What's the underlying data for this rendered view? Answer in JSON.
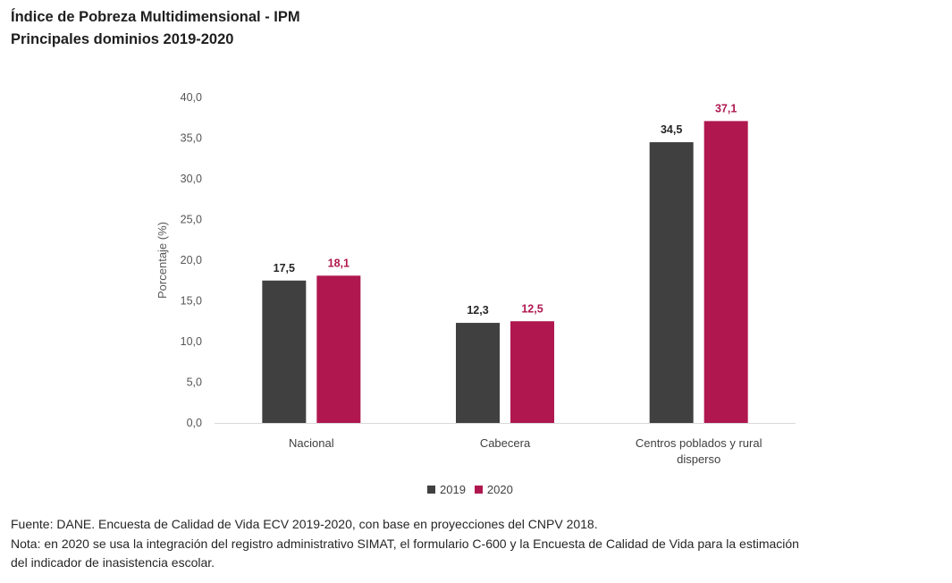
{
  "header": {
    "title_line1": "Índice de Pobreza Multidimensional - IPM",
    "title_line2": "Principales dominios 2019-2020"
  },
  "chart_data": {
    "type": "bar",
    "title": "Índice de Pobreza Multidimensional - IPM",
    "subtitle": "Principales dominios 2019-2020",
    "xlabel": "",
    "ylabel": "Porcentaje (%)",
    "ylim": [
      0,
      40
    ],
    "yticks": [
      "0,0",
      "5,0",
      "10,0",
      "15,0",
      "20,0",
      "25,0",
      "30,0",
      "35,0",
      "40,0"
    ],
    "grid": false,
    "legend_position": "bottom-center",
    "categories": [
      [
        "Nacional"
      ],
      [
        "Cabecera"
      ],
      [
        "Centros poblados y rural",
        "disperso"
      ]
    ],
    "series": [
      {
        "name": "2019",
        "color": "#404040",
        "label_color": "#262626",
        "values": [
          17.5,
          12.3,
          34.5
        ],
        "labels": [
          "17,5",
          "12,3",
          "34,5"
        ]
      },
      {
        "name": "2020",
        "color": "#B0174E",
        "label_color": "#B0174E",
        "values": [
          18.1,
          12.5,
          37.1
        ],
        "labels": [
          "18,1",
          "12,5",
          "37,1"
        ]
      }
    ]
  },
  "legend": {
    "items": [
      {
        "label": "2019",
        "color": "#404040"
      },
      {
        "label": "2020",
        "color": "#B0174E"
      }
    ]
  },
  "footer": {
    "source": "Fuente: DANE. Encuesta de Calidad de Vida ECV 2019-2020, con base en proyecciones del CNPV 2018.",
    "note_line1": "Nota: en 2020 se usa la integración del registro administrativo SIMAT, el formulario C-600 y la Encuesta de Calidad de Vida para la estimación",
    "note_line2": "del indicador de inasistencia escolar."
  }
}
